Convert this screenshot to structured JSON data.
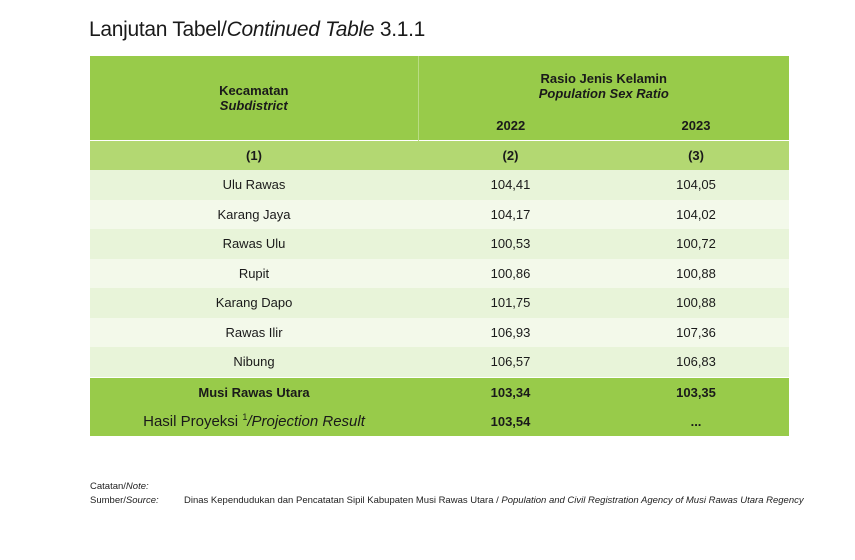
{
  "title": {
    "prefix": "Lanjutan Tabel/",
    "italic": "Continued Table",
    "number": "3.1.1"
  },
  "table": {
    "col1_header": "Kecamatan",
    "col1_header_en": "Subdistrict",
    "group_header": "Rasio Jenis Kelamin",
    "group_header_en": "Population Sex Ratio",
    "years": [
      "2022",
      "2023"
    ],
    "col_numbers": [
      "(1)",
      "(2)",
      "(3)"
    ],
    "rows": [
      {
        "name": "Ulu Rawas",
        "v2022": "104,41",
        "v2023": "104,05"
      },
      {
        "name": "Karang Jaya",
        "v2022": "104,17",
        "v2023": "104,02"
      },
      {
        "name": "Rawas Ulu",
        "v2022": "100,53",
        "v2023": "100,72"
      },
      {
        "name": "Rupit",
        "v2022": "100,86",
        "v2023": "100,88"
      },
      {
        "name": "Karang Dapo",
        "v2022": "101,75",
        "v2023": "100,88"
      },
      {
        "name": "Rawas Ilir",
        "v2022": "106,93",
        "v2023": "107,36"
      },
      {
        "name": "Nibung",
        "v2022": "106,57",
        "v2023": "106,83"
      }
    ],
    "total": {
      "name": "Musi Rawas Utara",
      "v2022": "103,34",
      "v2023": "103,35"
    },
    "projection": {
      "label": "Hasil Proyeksi ",
      "sup": "1",
      "label_en": "/Projection Result",
      "v2022": "103,54",
      "v2023": "..."
    }
  },
  "notes": {
    "note_label": "Catatan/",
    "note_label_en": "Note:",
    "source_label": "Sumber/",
    "source_label_en": "Source:",
    "source_text": "Dinas Kependudukan dan Pencatatan Sipil Kabupaten Musi Rawas Utara /",
    "source_text_en": "Population and Civil Registration Agency of Musi Rawas Utara Regency"
  }
}
